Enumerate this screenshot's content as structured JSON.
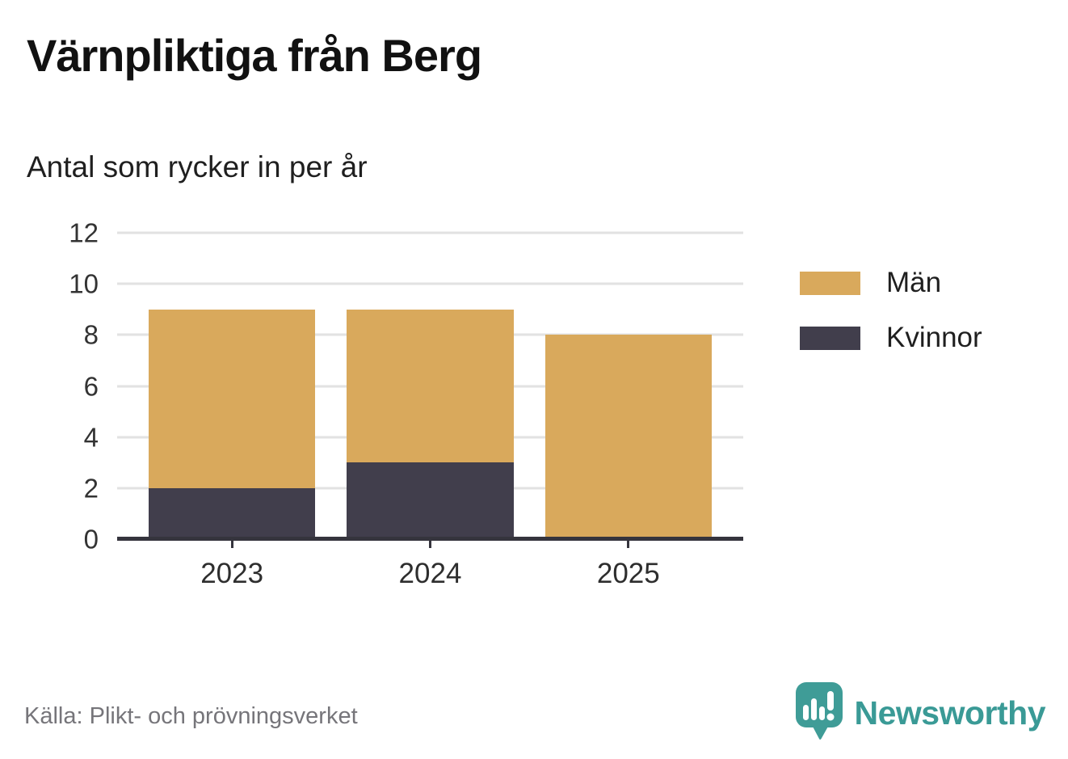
{
  "header": {
    "title": "Värnpliktiga från Berg",
    "subtitle": "Antal som rycker in per år"
  },
  "chart_data": {
    "type": "bar",
    "stacked": true,
    "title": "Värnpliktiga från Berg",
    "subtitle": "Antal som rycker in per år",
    "categories": [
      "2023",
      "2024",
      "2025"
    ],
    "series": [
      {
        "name": "Män",
        "color": "#d9a95c",
        "values": [
          7,
          6,
          8
        ]
      },
      {
        "name": "Kvinnor",
        "color": "#413e4c",
        "values": [
          2,
          3,
          0
        ]
      }
    ],
    "totals": [
      9,
      9,
      8
    ],
    "xlabel": "",
    "ylabel": "",
    "ylim": [
      0,
      12
    ],
    "yticks": [
      0,
      2,
      4,
      6,
      8,
      10,
      12
    ],
    "grid": "horizontal",
    "legend_position": "right"
  },
  "legend": {
    "items": [
      {
        "label": "Män",
        "color": "#d9a95c"
      },
      {
        "label": "Kvinnor",
        "color": "#413e4c"
      }
    ]
  },
  "footer": {
    "source": "Källa: Plikt- och prövningsverket",
    "brand": "Newsworthy"
  },
  "colors": {
    "men": "#d9a95c",
    "women": "#413e4c",
    "grid": "#e2e2e2",
    "axis": "#35343d",
    "teal": "#3a9a96"
  },
  "icons": {
    "brand_logo": "newsworthy-speech-bubble-chart-icon"
  }
}
